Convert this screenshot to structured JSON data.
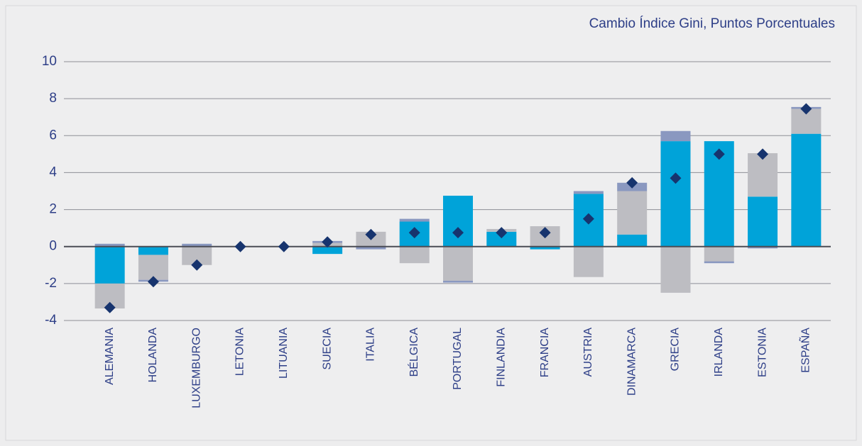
{
  "chart_data": {
    "type": "bar",
    "stacked": true,
    "title": "Cambio Índice Gini, Puntos Porcentuales",
    "categories": [
      "ALEMANIA",
      "HOLANDA",
      "LUXEMBURGO",
      "LETONIA",
      "LITUANIA",
      "SUECIA",
      "ITALIA",
      "BÉLGICA",
      "PORTUGAL",
      "FINLANDIA",
      "FRANCIA",
      "AUSTRIA",
      "DINAMARCA",
      "GRECIA",
      "IRLANDA",
      "ESTONIA",
      "ESPAÑA"
    ],
    "series": [
      {
        "color": "#00a3d9",
        "values": [
          -2,
          -0.45,
          0,
          0,
          0,
          -0.4,
          0,
          1.35,
          2.75,
          0.8,
          -0.15,
          2.85,
          0.65,
          5.7,
          5.7,
          2.7,
          6.1
        ]
      },
      {
        "color": "#bdbdc2",
        "values": [
          -1.35,
          -1.35,
          -1,
          0,
          0,
          0.2,
          0.8,
          -0.9,
          -1.85,
          0.15,
          1.1,
          -1.65,
          2.35,
          -2.5,
          -0.8,
          2.35,
          1.35
        ]
      },
      {
        "color": "#8a98c0",
        "values": [
          0.15,
          -0.1,
          0.15,
          0,
          0,
          0.1,
          -0.15,
          0.15,
          -0.1,
          0,
          0,
          0.15,
          0.45,
          0.55,
          -0.1,
          -0.1,
          0.1
        ]
      },
      {
        "type": "scatter",
        "marker": "diamond",
        "color": "#17346e",
        "values": [
          -3.3,
          -1.9,
          -1,
          0,
          0,
          0.25,
          0.65,
          0.75,
          0.75,
          0.75,
          0.75,
          1.5,
          3.45,
          3.7,
          5.0,
          5.0,
          7.45
        ]
      }
    ],
    "ylim": [
      -4,
      10
    ],
    "yticks": [
      -4,
      -2,
      0,
      2,
      4,
      6,
      8,
      10
    ],
    "grid": true
  }
}
